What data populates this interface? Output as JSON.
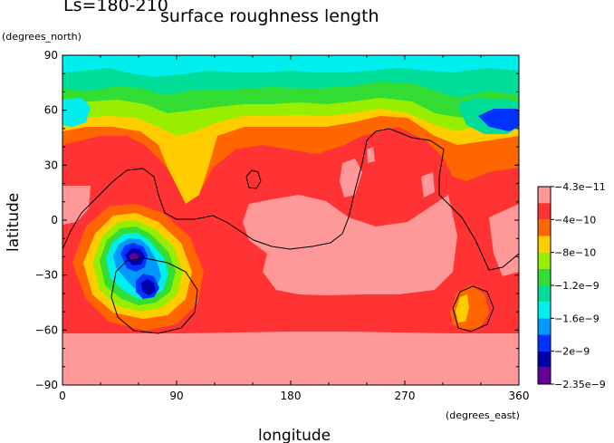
{
  "header": {
    "season": "Ls=180-210",
    "title": "surface roughness length"
  },
  "chart_data": {
    "type": "heatmap",
    "title": "surface roughness length",
    "subtitle": "Ls=180-210",
    "xlabel": "longitude",
    "ylabel": "latitude",
    "x_units": "(degrees_east)",
    "y_units": "(degrees_north)",
    "xlim": [
      0,
      360
    ],
    "ylim": [
      -90,
      90
    ],
    "x_ticks": [
      0,
      90,
      180,
      270,
      360
    ],
    "y_ticks": [
      90,
      60,
      30,
      0,
      -30,
      -60,
      -90
    ],
    "x_tick_labels": [
      "0",
      "90",
      "180",
      "270",
      "360"
    ],
    "y_tick_labels": [
      "90",
      "60",
      "30",
      "0",
      "−30",
      "−60",
      "−90"
    ],
    "colorbar": {
      "labels": [
        "−4.3e−11",
        "−4e−10",
        "−8e−10",
        "−1.2e−9",
        "−1.6e−9",
        "−2e−9",
        "−2.35e−9"
      ],
      "colors": [
        "#ff9999",
        "#ff3333",
        "#ff6600",
        "#ffcc00",
        "#99ee00",
        "#33dd33",
        "#00dd99",
        "#00eeee",
        "#0099ff",
        "#0033ff",
        "#0000aa",
        "#660099"
      ]
    },
    "region_colors": {
      "background": "#ff3333",
      "south_polar_cap": "#ff9999",
      "north_band_1": "#ff6600",
      "north_band_2": "#ffcc00",
      "north_band_3": "#99ee00",
      "north_band_4": "#33dd33",
      "north_band_5": "#00dd99",
      "north_band_6": "#00eeee",
      "north_blue_spot": "#0033ff",
      "north_cyan_patch": "#0099ff",
      "hellas_outer": "#ff6600",
      "hellas_2": "#ffcc00",
      "hellas_3": "#99ee00",
      "hellas_4": "#33dd33",
      "hellas_5": "#00eeee",
      "hellas_6": "#0099ff",
      "hellas_7": "#0033ff",
      "hellas_core": "#0000aa",
      "hellas_min": "#660099",
      "argyre_outer": "#ff6600",
      "argyre_inner": "#ffcc00",
      "contour_line": "#000000"
    }
  }
}
